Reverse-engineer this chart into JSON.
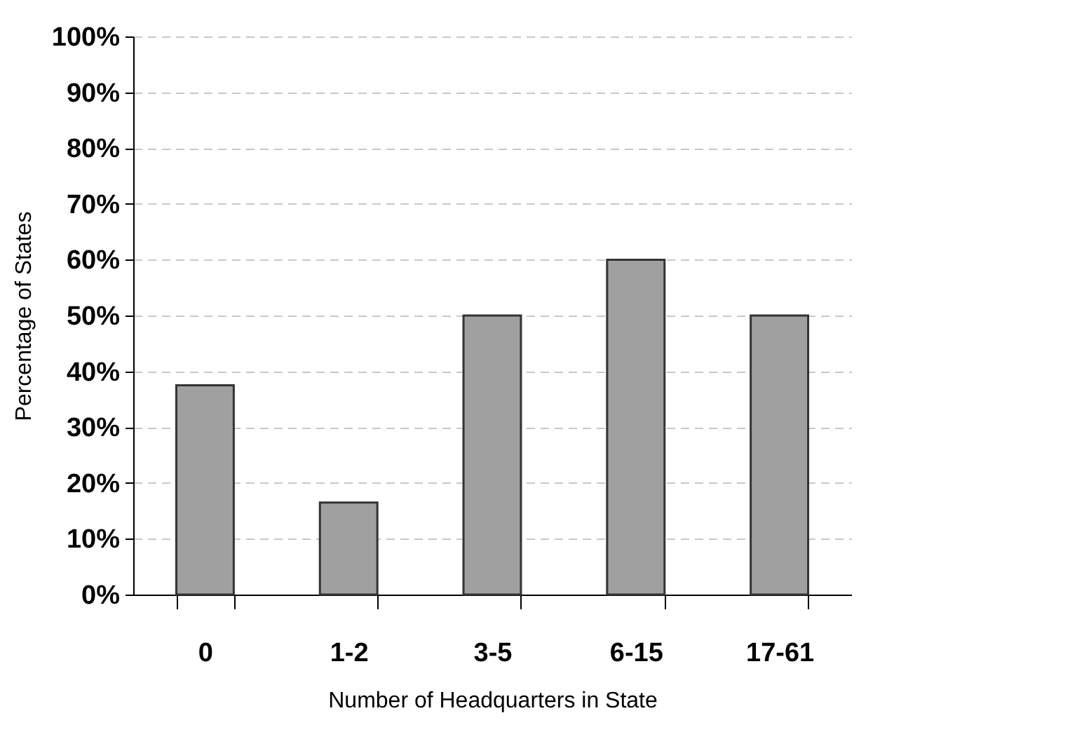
{
  "chart_data": {
    "type": "bar",
    "categories": [
      "0",
      "1-2",
      "3-5",
      "6-15",
      "17-61"
    ],
    "values": [
      37.5,
      16.5,
      50,
      60,
      50
    ],
    "color": "#a0a0a0",
    "xlabel": "Number of Headquarters in State",
    "ylabel": "Percentage of States",
    "ylim": [
      0,
      100
    ],
    "yticks": [
      {
        "value": 0,
        "label": "0%"
      },
      {
        "value": 10,
        "label": "10%"
      },
      {
        "value": 20,
        "label": "20%"
      },
      {
        "value": 30,
        "label": "30%"
      },
      {
        "value": 40,
        "label": "40%"
      },
      {
        "value": 50,
        "label": "50%"
      },
      {
        "value": 60,
        "label": "60%"
      },
      {
        "value": 70,
        "label": "70%"
      },
      {
        "value": 80,
        "label": "80%"
      },
      {
        "value": 90,
        "label": "90%"
      },
      {
        "value": 100,
        "label": "100%"
      }
    ],
    "grid": "y"
  }
}
